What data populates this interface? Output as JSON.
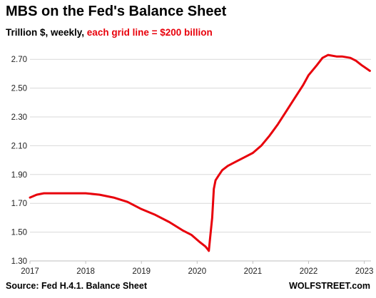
{
  "header": {
    "title": "MBS on the Fed's Balance Sheet",
    "subtitle_plain": "Trillion $, weekly, ",
    "subtitle_highlight": "each grid line = $200 billion"
  },
  "footer": {
    "source": "Source: Fed H.4.1. Balance Sheet",
    "brand": "WOLFSTREET.com"
  },
  "colors": {
    "line": "#e8000b",
    "grid": "#d9d9d9",
    "highlight": "#e8000b"
  },
  "chart_data": {
    "type": "line",
    "title": "MBS on the Fed's Balance Sheet",
    "ylabel": "Trillion $",
    "xlabel": "",
    "ylim": [
      1.3,
      2.8
    ],
    "xlim": [
      2017.0,
      2023.12
    ],
    "yticks": [
      "1.30",
      "1.50",
      "1.70",
      "1.90",
      "2.10",
      "2.30",
      "2.50",
      "2.70"
    ],
    "xticks": [
      "2017",
      "2018",
      "2019",
      "2020",
      "2021",
      "2022",
      "2023"
    ],
    "grid": "horizontal",
    "legend": "none",
    "series": [
      {
        "x": [
          2017.0,
          2017.12,
          2017.25,
          2017.5,
          2017.75,
          2018.0,
          2018.25,
          2018.5,
          2018.75,
          2019.0,
          2019.25,
          2019.5,
          2019.75,
          2019.9,
          2020.05,
          2020.15,
          2020.19,
          2020.21,
          2020.23,
          2020.27,
          2020.3,
          2020.33,
          2020.38,
          2020.45,
          2020.55,
          2020.7,
          2020.85,
          2021.0,
          2021.15,
          2021.3,
          2021.45,
          2021.6,
          2021.75,
          2021.9,
          2022.0,
          2022.15,
          2022.25,
          2022.35,
          2022.5,
          2022.6,
          2022.75,
          2022.85,
          2022.95,
          2023.1
        ],
        "y": [
          1.74,
          1.76,
          1.77,
          1.77,
          1.77,
          1.77,
          1.76,
          1.74,
          1.71,
          1.66,
          1.62,
          1.57,
          1.51,
          1.48,
          1.43,
          1.4,
          1.38,
          1.37,
          1.45,
          1.6,
          1.8,
          1.86,
          1.89,
          1.93,
          1.96,
          1.99,
          2.02,
          2.05,
          2.1,
          2.17,
          2.25,
          2.34,
          2.43,
          2.52,
          2.59,
          2.66,
          2.71,
          2.73,
          2.72,
          2.72,
          2.71,
          2.69,
          2.66,
          2.62
        ]
      }
    ]
  }
}
